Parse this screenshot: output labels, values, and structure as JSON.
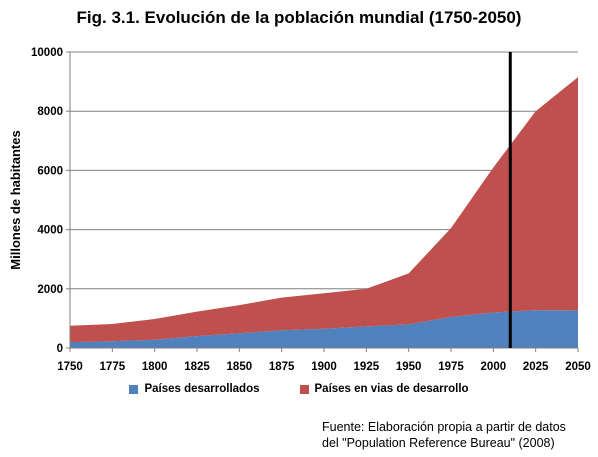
{
  "chart_data": {
    "type": "area",
    "stacked": true,
    "title": "Fig. 3.1. Evolución de la población mundial (1750-2050)",
    "ylabel": "Millones de habitantes",
    "xlabel": "",
    "x": [
      1750,
      1775,
      1800,
      1825,
      1850,
      1875,
      1900,
      1925,
      1950,
      1975,
      2000,
      2025,
      2050
    ],
    "x_tick_labels": [
      "1750",
      "1775",
      "1800",
      "1825",
      "1850",
      "1875",
      "1900",
      "1925",
      "1950",
      "1975",
      "2000",
      "2025",
      "2050"
    ],
    "y_tick_labels": [
      "0",
      "2000",
      "4000",
      "6000",
      "8000",
      "10000"
    ],
    "ylim": [
      0,
      10000
    ],
    "xlim": [
      1750,
      2050
    ],
    "grid": true,
    "legend_position": "bottom",
    "series": [
      {
        "name": "Países desarrollados",
        "color": "#4f81bd",
        "values": [
          200,
          230,
          280,
          400,
          500,
          600,
          650,
          730,
          800,
          1050,
          1200,
          1280,
          1270
        ]
      },
      {
        "name": "Países en vias de desarrollo",
        "color": "#c0504d",
        "values": [
          550,
          580,
          700,
          830,
          950,
          1100,
          1200,
          1270,
          1720,
          3000,
          4900,
          6720,
          7880
        ]
      }
    ],
    "vertical_line_x": 2010,
    "source_lines": [
      "Fuente: Elaboración propia a partir de datos",
      "del \"Population Reference Bureau\" (2008)"
    ]
  }
}
